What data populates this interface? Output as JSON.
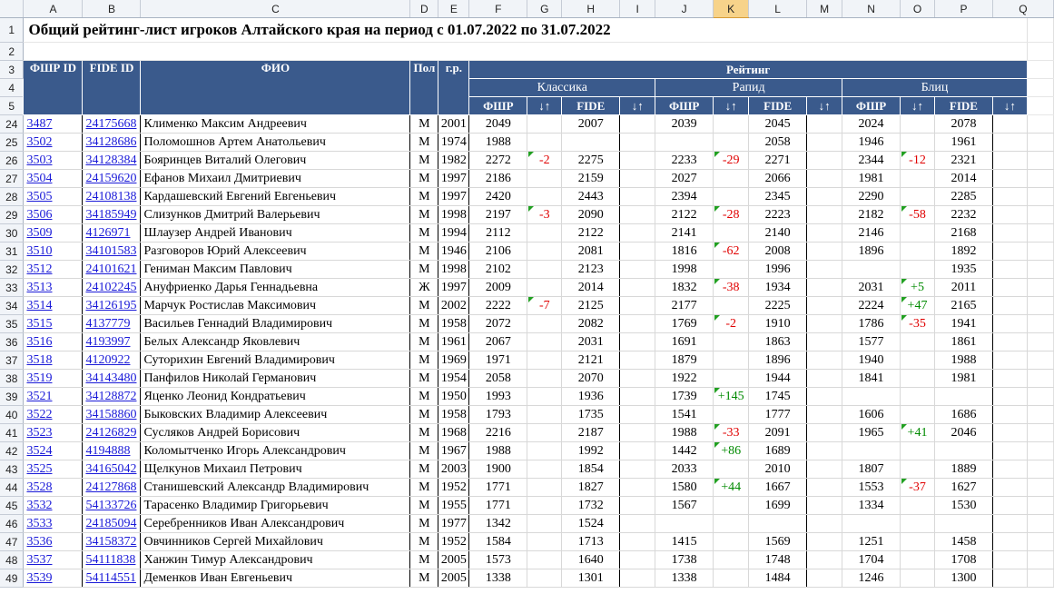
{
  "columns": [
    "A",
    "B",
    "C",
    "D",
    "E",
    "F",
    "G",
    "H",
    "I",
    "J",
    "K",
    "L",
    "M",
    "N",
    "O",
    "P",
    "Q"
  ],
  "selected_column": "K",
  "title": "Общий рейтинг-лист игроков Алтайского края на период с 01.07.2022 по 31.07.2022",
  "header": {
    "fshr_id": "ФШР ID",
    "fide_id": "FIDE ID",
    "fio": "ФИО",
    "pol": "Пол",
    "gr": "г.р.",
    "rating": "Рейтинг",
    "classic": "Классика",
    "rapid": "Рапид",
    "blitz": "Блиц",
    "fshr": "ФШР",
    "fide": "FIDE",
    "arrows": "↓↑"
  },
  "rows": [
    {
      "n": "24",
      "id": "3487",
      "fide": "24175668",
      "name": "Клименко Максим Андреевич",
      "sex": "М",
      "year": "2001",
      "c_fshr": "2049",
      "c_d": "",
      "c_fide": "2007",
      "r_fshr": "2039",
      "r_d": "",
      "r_fide": "2045",
      "b_fshr": "2024",
      "b_d": "",
      "b_fide": "2078"
    },
    {
      "n": "25",
      "id": "3502",
      "fide": "34128686",
      "name": "Поломошнов Артем Анатольевич",
      "sex": "М",
      "year": "1974",
      "c_fshr": "1988",
      "c_d": "",
      "c_fide": "",
      "r_fshr": "",
      "r_d": "",
      "r_fide": "2058",
      "b_fshr": "1946",
      "b_d": "",
      "b_fide": "1961"
    },
    {
      "n": "26",
      "id": "3503",
      "fide": "34128384",
      "name": "Бояринцев Виталий Олегович",
      "sex": "М",
      "year": "1982",
      "c_fshr": "2272",
      "c_d": "-2",
      "c_fide": "2275",
      "r_fshr": "2233",
      "r_d": "-29",
      "r_fide": "2271",
      "b_fshr": "2344",
      "b_d": "-12",
      "b_fide": "2321"
    },
    {
      "n": "27",
      "id": "3504",
      "fide": "24159620",
      "name": "Ефанов Михаил Дмитриевич",
      "sex": "М",
      "year": "1997",
      "c_fshr": "2186",
      "c_d": "",
      "c_fide": "2159",
      "r_fshr": "2027",
      "r_d": "",
      "r_fide": "2066",
      "b_fshr": "1981",
      "b_d": "",
      "b_fide": "2014"
    },
    {
      "n": "28",
      "id": "3505",
      "fide": "24108138",
      "name": "Кардашевский Евгений Евгеньевич",
      "sex": "М",
      "year": "1997",
      "c_fshr": "2420",
      "c_d": "",
      "c_fide": "2443",
      "r_fshr": "2394",
      "r_d": "",
      "r_fide": "2345",
      "b_fshr": "2290",
      "b_d": "",
      "b_fide": "2285"
    },
    {
      "n": "29",
      "id": "3506",
      "fide": "34185949",
      "name": "Слизунков Дмитрий Валерьевич",
      "sex": "М",
      "year": "1998",
      "c_fshr": "2197",
      "c_d": "-3",
      "c_fide": "2090",
      "r_fshr": "2122",
      "r_d": "-28",
      "r_fide": "2223",
      "b_fshr": "2182",
      "b_d": "-58",
      "b_fide": "2232"
    },
    {
      "n": "30",
      "id": "3509",
      "fide": "4126971",
      "name": "Шлаузер Андрей Иванович",
      "sex": "М",
      "year": "1994",
      "c_fshr": "2112",
      "c_d": "",
      "c_fide": "2122",
      "r_fshr": "2141",
      "r_d": "",
      "r_fide": "2140",
      "b_fshr": "2146",
      "b_d": "",
      "b_fide": "2168"
    },
    {
      "n": "31",
      "id": "3510",
      "fide": "34101583",
      "name": "Разговоров Юрий Алексеевич",
      "sex": "М",
      "year": "1946",
      "c_fshr": "2106",
      "c_d": "",
      "c_fide": "2081",
      "r_fshr": "1816",
      "r_d": "-62",
      "r_fide": "2008",
      "b_fshr": "1896",
      "b_d": "",
      "b_fide": "1892"
    },
    {
      "n": "32",
      "id": "3512",
      "fide": "24101621",
      "name": "Гениман Максим Павлович",
      "sex": "М",
      "year": "1998",
      "c_fshr": "2102",
      "c_d": "",
      "c_fide": "2123",
      "r_fshr": "1998",
      "r_d": "",
      "r_fide": "1996",
      "b_fshr": "",
      "b_d": "",
      "b_fide": "1935"
    },
    {
      "n": "33",
      "id": "3513",
      "fide": "24102245",
      "name": "Ануфриенко Дарья Геннадьевна",
      "sex": "Ж",
      "year": "1997",
      "c_fshr": "2009",
      "c_d": "",
      "c_fide": "2014",
      "r_fshr": "1832",
      "r_d": "-38",
      "r_fide": "1934",
      "b_fshr": "2031",
      "b_d": "+5",
      "b_fide": "2011"
    },
    {
      "n": "34",
      "id": "3514",
      "fide": "34126195",
      "name": "Марчук Ростислав Максимович",
      "sex": "М",
      "year": "2002",
      "c_fshr": "2222",
      "c_d": "-7",
      "c_fide": "2125",
      "r_fshr": "2177",
      "r_d": "",
      "r_fide": "2225",
      "b_fshr": "2224",
      "b_d": "+47",
      "b_fide": "2165"
    },
    {
      "n": "35",
      "id": "3515",
      "fide": "4137779",
      "name": "Васильев Геннадий Владимирович",
      "sex": "М",
      "year": "1958",
      "c_fshr": "2072",
      "c_d": "",
      "c_fide": "2082",
      "r_fshr": "1769",
      "r_d": "-2",
      "r_fide": "1910",
      "b_fshr": "1786",
      "b_d": "-35",
      "b_fide": "1941"
    },
    {
      "n": "36",
      "id": "3516",
      "fide": "4193997",
      "name": "Белых Александр Яковлевич",
      "sex": "М",
      "year": "1961",
      "c_fshr": "2067",
      "c_d": "",
      "c_fide": "2031",
      "r_fshr": "1691",
      "r_d": "",
      "r_fide": "1863",
      "b_fshr": "1577",
      "b_d": "",
      "b_fide": "1861"
    },
    {
      "n": "37",
      "id": "3518",
      "fide": "4120922",
      "name": "Суторихин Евгений Владимирович",
      "sex": "М",
      "year": "1969",
      "c_fshr": "1971",
      "c_d": "",
      "c_fide": "2121",
      "r_fshr": "1879",
      "r_d": "",
      "r_fide": "1896",
      "b_fshr": "1940",
      "b_d": "",
      "b_fide": "1988"
    },
    {
      "n": "38",
      "id": "3519",
      "fide": "34143480",
      "name": "Панфилов Николай Германович",
      "sex": "М",
      "year": "1954",
      "c_fshr": "2058",
      "c_d": "",
      "c_fide": "2070",
      "r_fshr": "1922",
      "r_d": "",
      "r_fide": "1944",
      "b_fshr": "1841",
      "b_d": "",
      "b_fide": "1981"
    },
    {
      "n": "39",
      "id": "3521",
      "fide": "34128872",
      "name": "Яценко Леонид Кондратьевич",
      "sex": "М",
      "year": "1950",
      "c_fshr": "1993",
      "c_d": "",
      "c_fide": "1936",
      "r_fshr": "1739",
      "r_d": "+145",
      "r_fide": "1745",
      "b_fshr": "",
      "b_d": "",
      "b_fide": ""
    },
    {
      "n": "40",
      "id": "3522",
      "fide": "34158860",
      "name": "Быковских Владимир Алексеевич",
      "sex": "М",
      "year": "1958",
      "c_fshr": "1793",
      "c_d": "",
      "c_fide": "1735",
      "r_fshr": "1541",
      "r_d": "",
      "r_fide": "1777",
      "b_fshr": "1606",
      "b_d": "",
      "b_fide": "1686"
    },
    {
      "n": "41",
      "id": "3523",
      "fide": "24126829",
      "name": "Сусляков Андрей Борисович",
      "sex": "М",
      "year": "1968",
      "c_fshr": "2216",
      "c_d": "",
      "c_fide": "2187",
      "r_fshr": "1988",
      "r_d": "-33",
      "r_fide": "2091",
      "b_fshr": "1965",
      "b_d": "+41",
      "b_fide": "2046"
    },
    {
      "n": "42",
      "id": "3524",
      "fide": "4194888",
      "name": "Коломытченко Игорь Александрович",
      "sex": "М",
      "year": "1967",
      "c_fshr": "1988",
      "c_d": "",
      "c_fide": "1992",
      "r_fshr": "1442",
      "r_d": "+86",
      "r_fide": "1689",
      "b_fshr": "",
      "b_d": "",
      "b_fide": ""
    },
    {
      "n": "43",
      "id": "3525",
      "fide": "34165042",
      "name": "Щелкунов Михаил Петрович",
      "sex": "М",
      "year": "2003",
      "c_fshr": "1900",
      "c_d": "",
      "c_fide": "1854",
      "r_fshr": "2033",
      "r_d": "",
      "r_fide": "2010",
      "b_fshr": "1807",
      "b_d": "",
      "b_fide": "1889"
    },
    {
      "n": "44",
      "id": "3528",
      "fide": "24127868",
      "name": "Станишевский Александр Владимирович",
      "sex": "М",
      "year": "1952",
      "c_fshr": "1771",
      "c_d": "",
      "c_fide": "1827",
      "r_fshr": "1580",
      "r_d": "+44",
      "r_fide": "1667",
      "b_fshr": "1553",
      "b_d": "-37",
      "b_fide": "1627"
    },
    {
      "n": "45",
      "id": "3532",
      "fide": "54133726",
      "name": "Тарасенко Владимир Григорьевич",
      "sex": "М",
      "year": "1955",
      "c_fshr": "1771",
      "c_d": "",
      "c_fide": "1732",
      "r_fshr": "1567",
      "r_d": "",
      "r_fide": "1699",
      "b_fshr": "1334",
      "b_d": "",
      "b_fide": "1530"
    },
    {
      "n": "46",
      "id": "3533",
      "fide": "24185094",
      "name": "Серебренников Иван Александрович",
      "sex": "М",
      "year": "1977",
      "c_fshr": "1342",
      "c_d": "",
      "c_fide": "1524",
      "r_fshr": "",
      "r_d": "",
      "r_fide": "",
      "b_fshr": "",
      "b_d": "",
      "b_fide": ""
    },
    {
      "n": "47",
      "id": "3536",
      "fide": "34158372",
      "name": "Овчинников Сергей Михайлович",
      "sex": "М",
      "year": "1952",
      "c_fshr": "1584",
      "c_d": "",
      "c_fide": "1713",
      "r_fshr": "1415",
      "r_d": "",
      "r_fide": "1569",
      "b_fshr": "1251",
      "b_d": "",
      "b_fide": "1458"
    },
    {
      "n": "48",
      "id": "3537",
      "fide": "54111838",
      "name": "Ханжин Тимур Александрович",
      "sex": "М",
      "year": "2005",
      "c_fshr": "1573",
      "c_d": "",
      "c_fide": "1640",
      "r_fshr": "1738",
      "r_d": "",
      "r_fide": "1748",
      "b_fshr": "1704",
      "b_d": "",
      "b_fide": "1708"
    },
    {
      "n": "49",
      "id": "3539",
      "fide": "54114551",
      "name": "Деменков Иван Евгеньевич",
      "sex": "М",
      "year": "2005",
      "c_fshr": "1338",
      "c_d": "",
      "c_fide": "1301",
      "r_fshr": "1338",
      "r_d": "",
      "r_fide": "1484",
      "b_fshr": "1246",
      "b_d": "",
      "b_fide": "1300"
    }
  ]
}
